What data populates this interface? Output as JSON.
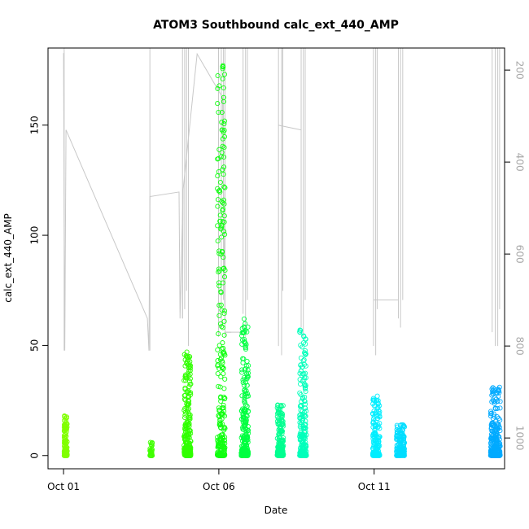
{
  "chart_data": {
    "type": "scatter",
    "title": "ATOM3 Southbound calc_ext_440_AMP",
    "xlabel": "Date",
    "ylabel": "calc_ext_440_AMP",
    "x_unit": "days",
    "x_ticks": [
      {
        "value": 1,
        "label": "Oct 01"
      },
      {
        "value": 6,
        "label": "Oct 06"
      },
      {
        "value": 11,
        "label": "Oct 11"
      }
    ],
    "xlim": [
      0.5,
      15.2
    ],
    "ylim": [
      -6,
      185
    ],
    "y_ticks": [
      0,
      50,
      100,
      150
    ],
    "y2_ticks": [
      200,
      400,
      600,
      800,
      1000
    ],
    "y2lim": [
      1067,
      152
    ],
    "y2_color": "#b0b0b0",
    "grid": false,
    "legend": "none",
    "point_clusters": [
      {
        "x_start": 1.02,
        "x_end": 1.12,
        "max": 18,
        "n": 140,
        "color": "#80ff00"
      },
      {
        "x_start": 3.78,
        "x_end": 3.86,
        "max": 6,
        "n": 40,
        "color": "#40ff00"
      },
      {
        "x_start": 4.88,
        "x_end": 5.1,
        "max": 47,
        "n": 300,
        "color": "#30ff00"
      },
      {
        "x_start": 5.95,
        "x_end": 6.2,
        "max": 177,
        "n": 280,
        "color": "#10ff10"
      },
      {
        "x_start": 6.72,
        "x_end": 6.95,
        "max": 62,
        "n": 260,
        "color": "#00ff40"
      },
      {
        "x_start": 7.88,
        "x_end": 8.08,
        "max": 23,
        "n": 220,
        "color": "#00ff90"
      },
      {
        "x_start": 8.6,
        "x_end": 8.82,
        "max": 57,
        "n": 220,
        "color": "#00ffbb"
      },
      {
        "x_start": 10.95,
        "x_end": 11.18,
        "max": 27,
        "n": 170,
        "color": "#00eeff"
      },
      {
        "x_start": 11.72,
        "x_end": 11.98,
        "max": 14,
        "n": 200,
        "color": "#00ddff"
      },
      {
        "x_start": 14.75,
        "x_end": 15.06,
        "max": 31,
        "n": 280,
        "color": "#00aaff"
      }
    ],
    "depth_series": {
      "name": "",
      "color": "#c8c8c8",
      "points": [
        [
          1.0,
          163
        ],
        [
          1.02,
          500
        ],
        [
          1.04,
          810
        ],
        [
          1.08,
          330
        ],
        [
          3.7,
          740
        ],
        [
          3.75,
          810
        ],
        [
          3.78,
          475
        ],
        [
          4.72,
          465
        ],
        [
          4.75,
          740
        ],
        [
          4.85,
          460
        ],
        [
          5.3,
          165
        ],
        [
          6.12,
          260
        ],
        [
          6.2,
          770
        ],
        [
          6.4,
          770
        ]
      ]
    },
    "depth_spikes": [
      {
        "x": 1.02,
        "lo": 152,
        "hi": 810
      },
      {
        "x": 3.78,
        "lo": 152,
        "hi": 810
      },
      {
        "x": 4.83,
        "lo": 152,
        "hi": 740
      },
      {
        "x": 4.9,
        "lo": 152,
        "hi": 720
      },
      {
        "x": 4.96,
        "lo": 152,
        "hi": 680
      },
      {
        "x": 5.02,
        "lo": 152,
        "hi": 800
      },
      {
        "x": 5.99,
        "lo": 152,
        "hi": 780
      },
      {
        "x": 6.08,
        "lo": 152,
        "hi": 760
      },
      {
        "x": 6.15,
        "lo": 152,
        "hi": 700
      },
      {
        "x": 6.2,
        "lo": 152,
        "hi": 780
      },
      {
        "x": 6.78,
        "lo": 152,
        "hi": 730
      },
      {
        "x": 6.86,
        "lo": 152,
        "hi": 780
      },
      {
        "x": 6.92,
        "lo": 152,
        "hi": 700
      },
      {
        "x": 7.92,
        "lo": 152,
        "hi": 800
      },
      {
        "x": 8.02,
        "lo": 152,
        "hi": 820
      },
      {
        "x": 8.06,
        "lo": 152,
        "hi": 680
      },
      {
        "x": 8.65,
        "lo": 152,
        "hi": 760
      },
      {
        "x": 8.72,
        "lo": 152,
        "hi": 780
      },
      {
        "x": 8.78,
        "lo": 152,
        "hi": 700
      },
      {
        "x": 10.98,
        "lo": 152,
        "hi": 800
      },
      {
        "x": 11.05,
        "lo": 152,
        "hi": 820
      },
      {
        "x": 11.1,
        "lo": 152,
        "hi": 720
      },
      {
        "x": 11.78,
        "lo": 152,
        "hi": 740
      },
      {
        "x": 11.85,
        "lo": 152,
        "hi": 760
      },
      {
        "x": 11.92,
        "lo": 152,
        "hi": 700
      },
      {
        "x": 14.8,
        "lo": 152,
        "hi": 770
      },
      {
        "x": 14.9,
        "lo": 152,
        "hi": 800
      },
      {
        "x": 14.98,
        "lo": 152,
        "hi": 800
      },
      {
        "x": 15.04,
        "lo": 152,
        "hi": 720
      }
    ],
    "depth_links": [
      [
        4.85,
        460,
        4.83,
        740
      ],
      [
        6.2,
        770,
        6.78,
        770
      ],
      [
        7.92,
        320,
        8.65,
        330
      ],
      [
        10.98,
        700,
        11.78,
        700
      ]
    ]
  }
}
